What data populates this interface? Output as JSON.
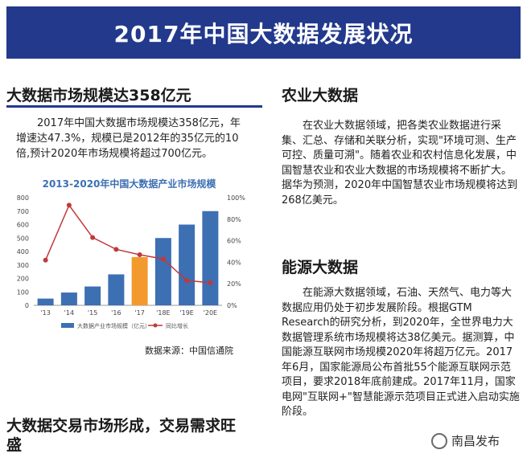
{
  "header": {
    "title": "2017年中国大数据发展状况"
  },
  "left": {
    "heading": "大数据市场规模达358亿元",
    "paragraph": "　　2017年中国大数据市场规模达358亿元，年增速达47.3%，规模已是2012年的35亿元的10倍,预计2020年市场规模将超过700亿元。",
    "source": "数据来源：中国信通院",
    "bottom_heading": "大数据交易市场形成，交易需求旺盛"
  },
  "right": {
    "sections": [
      {
        "heading": "农业大数据",
        "paragraph": "在农业大数据领域，把各类农业数据进行采集、汇总、存储和关联分析，实现\"环境可测、生产可控、质量可溯\"。随着农业和农村信息化发展，中国智慧农业和农业大数据的市场规模将不断扩大。据华为预测，2020年中国智慧农业市场规模将达到268亿美元。"
      },
      {
        "heading": "能源大数据",
        "paragraph": "在能源大数据领域，石油、天然气、电力等大数据应用仍处于初步发展阶段。根据GTM Research的研究分析，到2020年，全世界电力大数据管理系统市场规模将达38亿美元。据测算，中国能源互联网市场规模2020年将超万亿元。2017年6月，国家能源局公布首批55个能源互联网示范项目，要求2018年底前建成。2017年11月，国家电网\"互联网+\"智慧能源示范项目正式进入启动实施阶段。"
      }
    ]
  },
  "watermark": {
    "text": "南昌发布"
  },
  "colors": {
    "header_bg": "#22398c",
    "bar": "#3d6fb3",
    "bar_highlight": "#f39a2e",
    "line": "#c0393b"
  },
  "chart_data": {
    "type": "bar",
    "title": "2013-2020年中国大数据产业市场规模",
    "categories": [
      "'13",
      "'14",
      "'15",
      "'16",
      "'17",
      "'18E",
      "'19E",
      "'20E"
    ],
    "series": [
      {
        "name": "大数据产业市场规模（亿元）",
        "type": "bar",
        "axis": "left",
        "values": [
          50,
          95,
          140,
          230,
          358,
          500,
          600,
          700
        ]
      },
      {
        "name": "同比增长",
        "type": "line",
        "axis": "right",
        "values": [
          42,
          93,
          63,
          52,
          47,
          43,
          23,
          21
        ]
      }
    ],
    "highlight_index": 4,
    "y_left": {
      "ticks": [
        "0",
        "100",
        "200",
        "300",
        "400",
        "500",
        "600",
        "700",
        "800"
      ],
      "range": [
        0,
        800
      ]
    },
    "y_right": {
      "ticks": [
        "0%",
        "20%",
        "40%",
        "60%",
        "80%",
        "100%"
      ],
      "range": [
        0,
        100
      ]
    },
    "grid": false,
    "legend": "bottom"
  }
}
